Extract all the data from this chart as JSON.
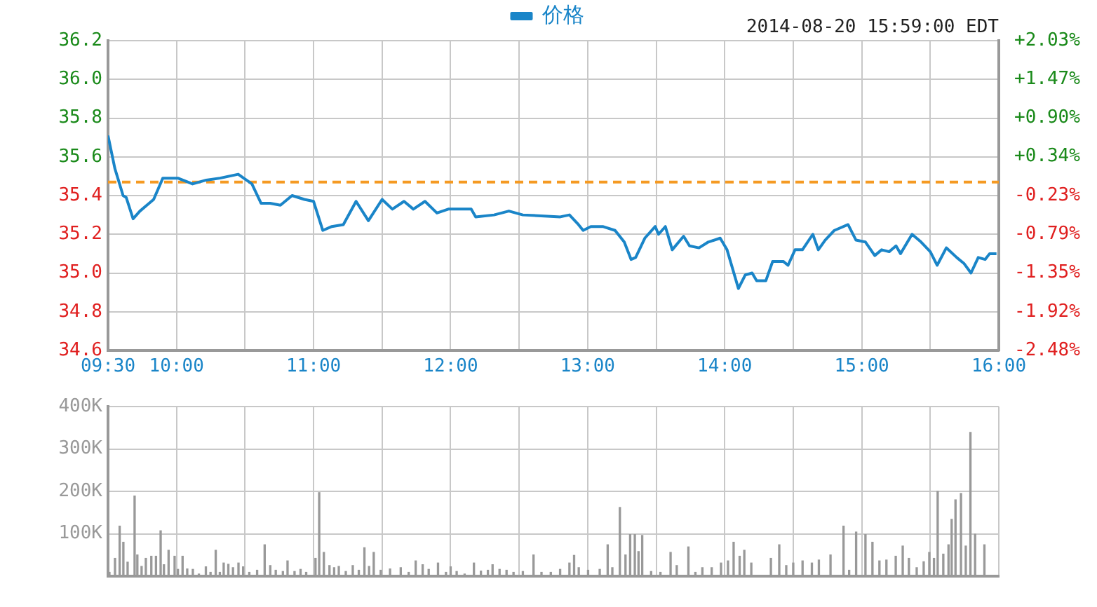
{
  "chart_data": [
    {
      "type": "line",
      "legend": "top",
      "grid": true,
      "annotations": [
        "2014-08-20 15:59:00 EDT"
      ],
      "xlim": [
        9.5,
        16
      ],
      "xticks": [
        {
          "value": 9.5,
          "label": "09:30"
        },
        {
          "value": 10,
          "label": "10:00"
        },
        {
          "value": 10.5,
          "label": null
        },
        {
          "value": 11,
          "label": "11:00"
        },
        {
          "value": 11.5,
          "label": null
        },
        {
          "value": 12,
          "label": "12:00"
        },
        {
          "value": 12.5,
          "label": null
        },
        {
          "value": 13,
          "label": "13:00"
        },
        {
          "value": 13.5,
          "label": null
        },
        {
          "value": 14,
          "label": "14:00"
        },
        {
          "value": 14.5,
          "label": null
        },
        {
          "value": 15,
          "label": "15:00"
        },
        {
          "value": 15.5,
          "label": null
        },
        {
          "value": 16,
          "label": "16:00"
        }
      ],
      "ylim": [
        34.6,
        36.2
      ],
      "yticks": [
        {
          "value": 34.6,
          "label": "34.6"
        },
        {
          "value": 34.8,
          "label": "34.8"
        },
        {
          "value": 35,
          "label": "35.0"
        },
        {
          "value": 35.2,
          "label": "35.2"
        },
        {
          "value": 35.4,
          "label": "35.4"
        },
        {
          "value": 35.6,
          "label": "35.6"
        },
        {
          "value": 35.8,
          "label": "35.8"
        },
        {
          "value": 36,
          "label": "36.0"
        },
        {
          "value": 36.2,
          "label": "36.2"
        }
      ],
      "y2lim": [
        -2.48,
        2.03
      ],
      "y2ticks": [
        {
          "value": -2.48,
          "label": "-2.48%"
        },
        {
          "value": -1.92,
          "label": "-1.92%"
        },
        {
          "value": -1.35,
          "label": "-1.35%"
        },
        {
          "value": -0.79,
          "label": "-0.79%"
        },
        {
          "value": -0.23,
          "label": "-0.23%"
        },
        {
          "value": 0.34,
          "label": "+0.34%"
        },
        {
          "value": 0.9,
          "label": "+0.90%"
        },
        {
          "value": 1.47,
          "label": "+1.47%"
        },
        {
          "value": 2.03,
          "label": "+2.03%"
        }
      ],
      "ref_lines": [
        {
          "axis": "y",
          "value": 35.47,
          "color": "#f59a23",
          "line_style": "dashed"
        }
      ],
      "series": [
        {
          "name": "价格",
          "color": "#1a85c8",
          "x": [
            9.5,
            9.55,
            9.61,
            9.633,
            9.683,
            9.733,
            9.8,
            9.833,
            9.9,
            10.01,
            10.117,
            10.217,
            10.317,
            10.45,
            10.55,
            10.617,
            10.683,
            10.758,
            10.843,
            10.933,
            11.0,
            11.067,
            11.133,
            11.217,
            11.31,
            11.4,
            11.5,
            11.575,
            11.66,
            11.728,
            11.813,
            11.9,
            11.983,
            12.15,
            12.183,
            12.317,
            12.425,
            12.527,
            12.8,
            12.867,
            12.933,
            12.967,
            13.023,
            13.11,
            13.2,
            13.267,
            13.317,
            13.35,
            13.417,
            13.493,
            13.517,
            13.567,
            13.617,
            13.7,
            13.743,
            13.812,
            13.88,
            13.967,
            14.017,
            14.1,
            14.15,
            14.2,
            14.233,
            14.3,
            14.35,
            14.427,
            14.462,
            14.513,
            14.567,
            14.643,
            14.683,
            14.733,
            14.8,
            14.9,
            14.958,
            15.027,
            15.095,
            15.145,
            15.2,
            15.25,
            15.283,
            15.367,
            15.433,
            15.5,
            15.55,
            15.617,
            15.693,
            15.745,
            15.797,
            15.85,
            15.9,
            15.933,
            15.983
          ],
          "values": [
            35.71,
            35.54,
            35.4,
            35.39,
            35.28,
            35.32,
            35.36,
            35.38,
            35.49,
            35.49,
            35.46,
            35.48,
            35.49,
            35.51,
            35.46,
            35.36,
            35.36,
            35.35,
            35.4,
            35.38,
            35.37,
            35.22,
            35.24,
            35.25,
            35.37,
            35.27,
            35.38,
            35.33,
            35.37,
            35.33,
            35.37,
            35.31,
            35.33,
            35.33,
            35.29,
            35.3,
            35.32,
            35.3,
            35.29,
            35.3,
            35.25,
            35.22,
            35.24,
            35.24,
            35.22,
            35.16,
            35.07,
            35.08,
            35.18,
            35.24,
            35.2,
            35.24,
            35.12,
            35.19,
            35.14,
            35.13,
            35.16,
            35.18,
            35.12,
            34.92,
            34.99,
            35.0,
            34.96,
            34.96,
            35.06,
            35.06,
            35.04,
            35.12,
            35.12,
            35.2,
            35.12,
            35.17,
            35.22,
            35.25,
            35.17,
            35.16,
            35.09,
            35.12,
            35.11,
            35.14,
            35.1,
            35.2,
            35.16,
            35.11,
            35.04,
            35.13,
            35.08,
            35.05,
            35.0,
            35.08,
            35.07,
            35.1,
            35.1
          ]
        }
      ]
    },
    {
      "type": "bar",
      "grid": true,
      "tick_labels": "y",
      "xlim": [
        9.5,
        16
      ],
      "xticks": [
        {
          "value": 9.5,
          "label": null
        },
        {
          "value": 10,
          "label": null
        },
        {
          "value": 10.5,
          "label": null
        },
        {
          "value": 11,
          "label": null
        },
        {
          "value": 11.5,
          "label": null
        },
        {
          "value": 12,
          "label": null
        },
        {
          "value": 12.5,
          "label": null
        },
        {
          "value": 13,
          "label": null
        },
        {
          "value": 13.5,
          "label": null
        },
        {
          "value": 14,
          "label": null
        },
        {
          "value": 14.5,
          "label": null
        },
        {
          "value": 15,
          "label": null
        },
        {
          "value": 15.5,
          "label": null
        },
        {
          "value": 16,
          "label": null
        }
      ],
      "ylim": [
        0,
        400000
      ],
      "yticks": [
        {
          "value": 100000,
          "label": "100K"
        },
        {
          "value": 200000,
          "label": "200K"
        },
        {
          "value": 300000,
          "label": "300K"
        },
        {
          "value": 400000,
          "label": "400K"
        }
      ],
      "series": [
        {
          "color": "#999999",
          "x": [
            9.51,
            9.551,
            9.585,
            9.612,
            9.643,
            9.694,
            9.714,
            9.745,
            9.776,
            9.816,
            9.85,
            9.884,
            9.908,
            9.942,
            9.986,
            10.01,
            10.044,
            10.078,
            10.119,
            10.163,
            10.214,
            10.248,
            10.286,
            10.316,
            10.344,
            10.378,
            10.412,
            10.452,
            10.486,
            10.531,
            10.588,
            10.643,
            10.684,
            10.724,
            10.776,
            10.81,
            10.861,
            10.905,
            10.946,
            11.014,
            11.041,
            11.075,
            11.116,
            11.15,
            11.184,
            11.235,
            11.286,
            11.33,
            11.371,
            11.405,
            11.439,
            11.49,
            11.558,
            11.636,
            11.694,
            11.745,
            11.796,
            11.84,
            11.908,
            11.966,
            12.0,
            12.044,
            12.102,
            12.17,
            12.221,
            12.272,
            12.306,
            12.357,
            12.408,
            12.459,
            12.527,
            12.605,
            12.663,
            12.731,
            12.799,
            12.867,
            12.901,
            12.935,
            13.003,
            13.088,
            13.146,
            13.18,
            13.235,
            13.276,
            13.31,
            13.344,
            13.371,
            13.398,
            13.463,
            13.531,
            13.605,
            13.65,
            13.735,
            13.786,
            13.837,
            13.905,
            13.973,
            14.024,
            14.065,
            14.109,
            14.143,
            14.194,
            14.337,
            14.398,
            14.449,
            14.5,
            14.568,
            14.636,
            14.687,
            14.772,
            14.867,
            14.908,
            14.959,
            15.027,
            15.078,
            15.129,
            15.18,
            15.248,
            15.299,
            15.344,
            15.401,
            15.452,
            15.493,
            15.527,
            15.554,
            15.595,
            15.633,
            15.656,
            15.684,
            15.724,
            15.759,
            15.793,
            15.827,
            15.895
          ],
          "values": [
            9000,
            42000,
            118000,
            80000,
            33000,
            189000,
            50000,
            23000,
            42000,
            47000,
            47000,
            107000,
            27000,
            61000,
            47000,
            16000,
            47000,
            17000,
            16000,
            5000,
            22000,
            9000,
            61000,
            9000,
            31000,
            28000,
            20000,
            31000,
            22000,
            9000,
            14000,
            74000,
            25000,
            14000,
            11000,
            36000,
            11000,
            16000,
            9000,
            42000,
            197000,
            56000,
            25000,
            20000,
            23000,
            11000,
            25000,
            14000,
            67000,
            23000,
            56000,
            14000,
            17000,
            20000,
            9000,
            36000,
            27000,
            16000,
            31000,
            9000,
            22000,
            11000,
            5000,
            31000,
            12000,
            14000,
            27000,
            16000,
            14000,
            9000,
            11000,
            50000,
            9000,
            9000,
            16000,
            31000,
            49000,
            20000,
            14000,
            16000,
            74000,
            20000,
            162000,
            50000,
            98000,
            98000,
            58000,
            96000,
            11000,
            9000,
            56000,
            25000,
            69000,
            9000,
            20000,
            20000,
            31000,
            36000,
            80000,
            47000,
            61000,
            31000,
            42000,
            74000,
            25000,
            31000,
            36000,
            31000,
            38000,
            50000,
            118000,
            14000,
            104000,
            98000,
            80000,
            36000,
            38000,
            47000,
            71000,
            42000,
            20000,
            34000,
            56000,
            42000,
            200000,
            52000,
            74000,
            134000,
            180000,
            195000,
            71000,
            339000,
            99000,
            74000
          ]
        }
      ]
    }
  ]
}
